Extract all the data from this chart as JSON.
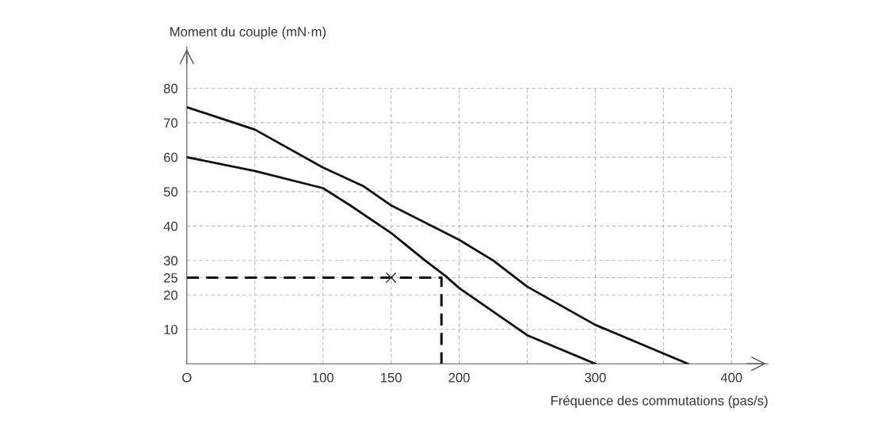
{
  "chart_data": {
    "type": "line",
    "xlabel": "Fréquence des commutations (pas/s)",
    "ylabel": "Moment du couple (mN·m)",
    "xlim": [
      0,
      427
    ],
    "ylim": [
      0,
      92
    ],
    "xticks": [
      {
        "value": 0,
        "label": "O"
      },
      {
        "value": 50,
        "label": null
      },
      100,
      150,
      200,
      {
        "value": 250,
        "label": null
      },
      300,
      {
        "value": 350,
        "label": null
      },
      400
    ],
    "yticks": [
      10,
      20,
      25,
      30,
      40,
      50,
      60,
      70,
      80
    ],
    "grid": true,
    "legend": false,
    "series": [
      {
        "color": "#111111",
        "line_style": "solid",
        "marker": "none",
        "x": [
          0,
          50,
          100,
          130,
          150,
          200,
          225,
          250,
          300,
          368
        ],
        "values": [
          74.5,
          68,
          57,
          51.5,
          46,
          36,
          30,
          22.4,
          11.3,
          0
        ]
      },
      {
        "color": "#111111",
        "line_style": "solid",
        "marker": "none",
        "x": [
          0,
          50,
          100,
          120,
          150,
          175,
          190,
          200,
          250,
          300
        ],
        "values": [
          60,
          56,
          51,
          46,
          38,
          30,
          25.5,
          22,
          8.3,
          0
        ]
      },
      {
        "color": "#111111",
        "line_style": "dashed",
        "marker": "none",
        "x": [
          0,
          187,
          187
        ],
        "values": [
          25,
          25,
          0
        ]
      },
      {
        "type": "scatter",
        "color": "#333333",
        "marker": "cross",
        "x": [
          150
        ],
        "values": [
          25
        ]
      }
    ]
  }
}
